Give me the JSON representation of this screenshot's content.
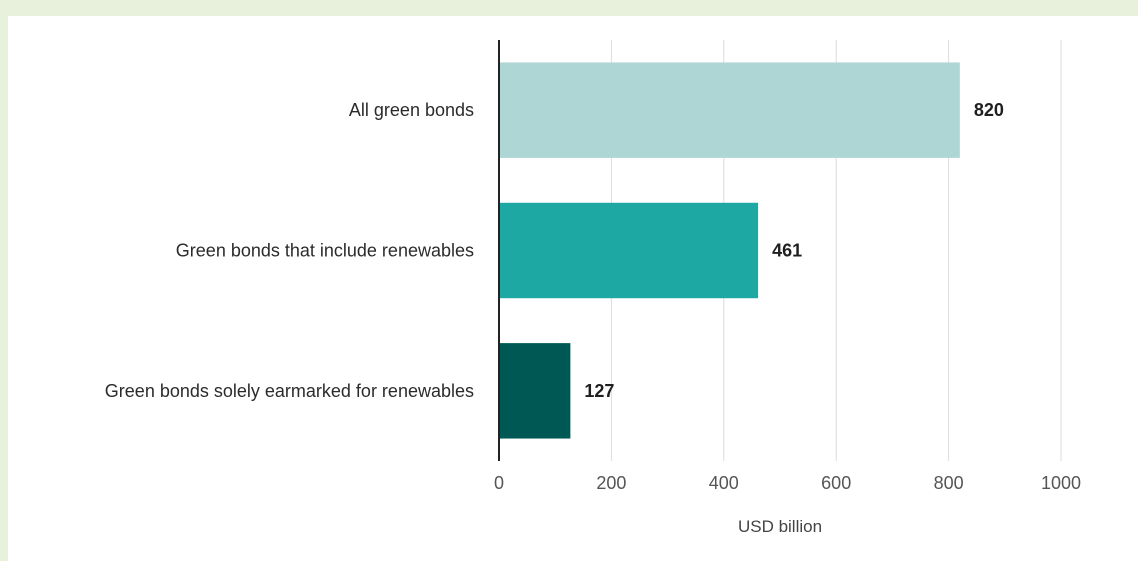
{
  "chart_data": {
    "type": "bar",
    "orientation": "horizontal",
    "title": "",
    "xlabel": "USD billion",
    "ylabel": "",
    "categories": [
      "All green bonds",
      "Green bonds that include renewables",
      "Green bonds solely earmarked for renewables"
    ],
    "values": [
      820,
      461,
      127
    ],
    "value_labels": [
      "820",
      "461",
      "127"
    ],
    "bar_colors": [
      "#aed6d4",
      "#1ea8a4",
      "#005854"
    ],
    "xlim": [
      0,
      1000
    ],
    "xticks": [
      0,
      200,
      400,
      600,
      800,
      1000
    ],
    "xtick_labels": [
      "0",
      "200",
      "400",
      "600",
      "800",
      "1000"
    ],
    "grid": "vertical",
    "legend": "none"
  }
}
